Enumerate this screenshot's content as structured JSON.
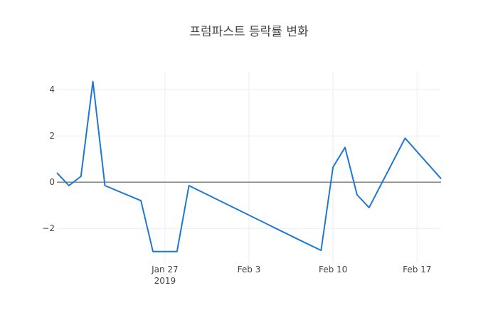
{
  "chart_data": {
    "type": "line",
    "title": "프럼파스트 등락률 변화",
    "xlabel": "",
    "ylabel": "",
    "xlim": [
      "2019-01-18",
      "2019-02-19"
    ],
    "ylim": [
      -3.5,
      4.8
    ],
    "x_ticks": [
      {
        "date": "2019-01-27",
        "label": "Jan 27",
        "sublabel": "2019"
      },
      {
        "date": "2019-02-03",
        "label": "Feb 3",
        "sublabel": ""
      },
      {
        "date": "2019-02-10",
        "label": "Feb 10",
        "sublabel": ""
      },
      {
        "date": "2019-02-17",
        "label": "Feb 17",
        "sublabel": ""
      }
    ],
    "y_ticks": [
      {
        "value": 4,
        "label": "4"
      },
      {
        "value": 2,
        "label": "2"
      },
      {
        "value": 0,
        "label": "0"
      },
      {
        "value": -2,
        "label": "−2"
      }
    ],
    "grid": true,
    "color": "#1f77d4",
    "series": [
      {
        "x": [
          "2019-01-18",
          "2019-01-19",
          "2019-01-20",
          "2019-01-21",
          "2019-01-22",
          "2019-01-25",
          "2019-01-26",
          "2019-01-28",
          "2019-01-29",
          "2019-02-07",
          "2019-02-09",
          "2019-02-10",
          "2019-02-11",
          "2019-02-12",
          "2019-02-13",
          "2019-02-16",
          "2019-02-19"
        ],
        "y": [
          0.4,
          -0.15,
          0.25,
          4.35,
          -0.15,
          -0.8,
          -3.0,
          -3.0,
          -0.15,
          -2.45,
          -2.95,
          0.65,
          1.5,
          -0.55,
          -1.1,
          1.9,
          0.15
        ]
      }
    ]
  }
}
